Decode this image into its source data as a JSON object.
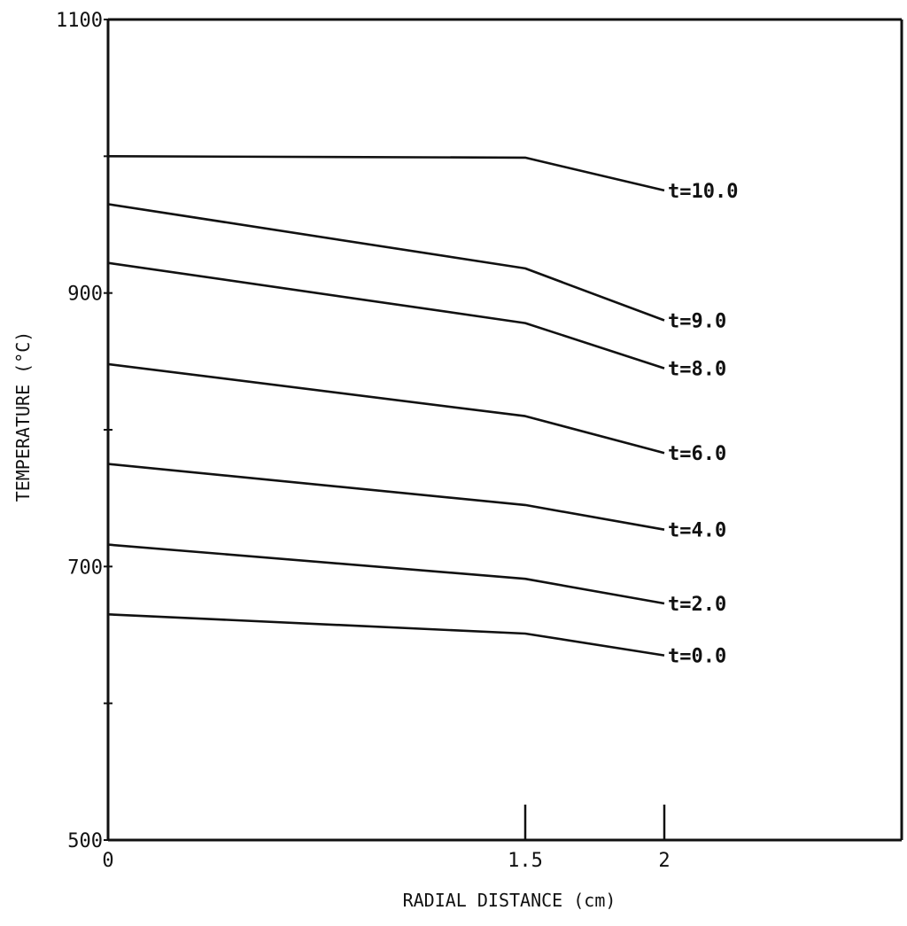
{
  "chart_data": {
    "type": "line",
    "title": "",
    "xlabel": "RADIAL DISTANCE (cm)",
    "ylabel": "TEMPERATURE (°C)",
    "xlim": [
      0,
      2.9
    ],
    "ylim": [
      500,
      1100
    ],
    "x_ticks": [
      {
        "value": 0,
        "label": "0"
      },
      {
        "value": 1.5,
        "label": "1.5"
      },
      {
        "value": 2,
        "label": "2"
      }
    ],
    "y_ticks": [
      {
        "value": 500,
        "label": "500"
      },
      {
        "value": 600,
        "label": ""
      },
      {
        "value": 700,
        "label": "700"
      },
      {
        "value": 800,
        "label": ""
      },
      {
        "value": 900,
        "label": "900"
      },
      {
        "value": 1000,
        "label": ""
      },
      {
        "value": 1100,
        "label": "1100"
      }
    ],
    "grid": false,
    "legend": "inline labels at right end of each curve",
    "line_color": "#111111",
    "series": [
      {
        "name": "t=10.0",
        "x": [
          0,
          1.5,
          2
        ],
        "values": [
          1000,
          999,
          975
        ]
      },
      {
        "name": "t=9.0",
        "x": [
          0,
          1.5,
          2
        ],
        "values": [
          965,
          918,
          880
        ]
      },
      {
        "name": "t=8.0",
        "x": [
          0,
          1.5,
          2
        ],
        "values": [
          922,
          878,
          845
        ]
      },
      {
        "name": "t=6.0",
        "x": [
          0,
          1.5,
          2
        ],
        "values": [
          848,
          810,
          783
        ]
      },
      {
        "name": "t=4.0",
        "x": [
          0,
          1.5,
          2
        ],
        "values": [
          775,
          745,
          727
        ]
      },
      {
        "name": "t=2.0",
        "x": [
          0,
          1.5,
          2
        ],
        "values": [
          716,
          691,
          673
        ]
      },
      {
        "name": "t=0.0",
        "x": [
          0,
          1.5,
          2
        ],
        "values": [
          665,
          651,
          635
        ]
      }
    ]
  }
}
